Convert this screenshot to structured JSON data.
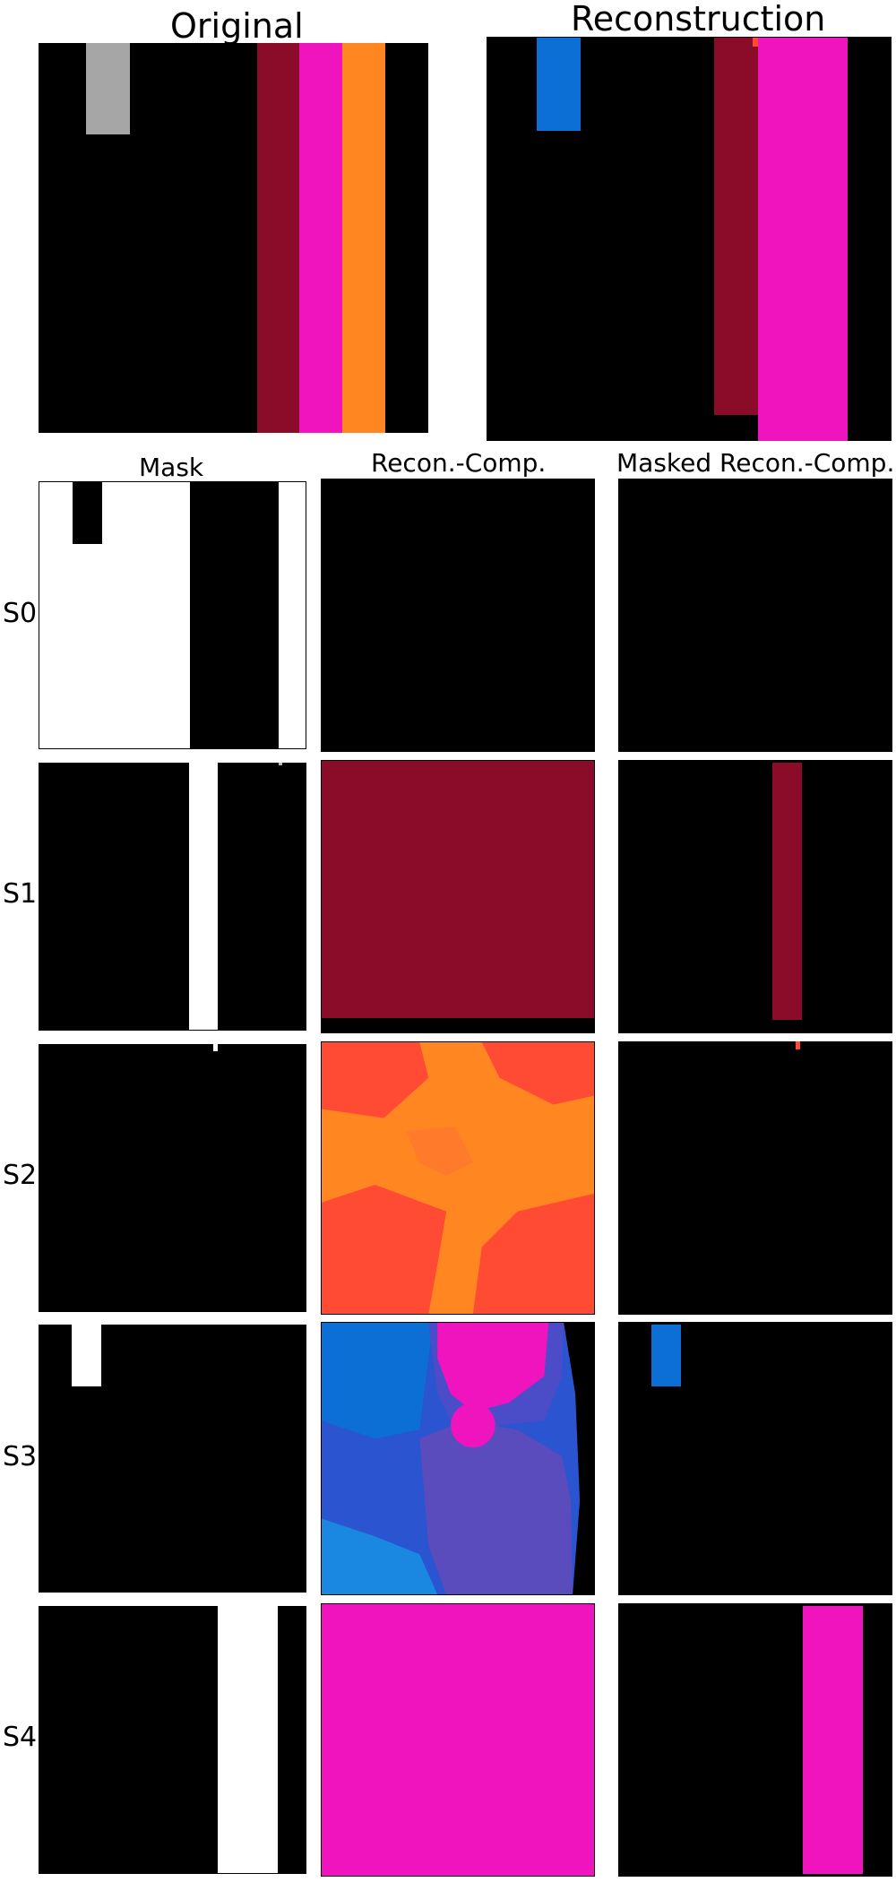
{
  "headers": {
    "original": "Original",
    "reconstruction": "Reconstruction",
    "mask": "Mask",
    "recon_comp": "Recon.-Comp.",
    "masked_recon_comp": "Masked Recon.-Comp."
  },
  "rows": [
    {
      "label": "S0"
    },
    {
      "label": "S1"
    },
    {
      "label": "S2"
    },
    {
      "label": "S3"
    },
    {
      "label": "S4"
    }
  ],
  "colors": {
    "background": "#000000",
    "gray_block": "#a6a6a6",
    "maroon": "#8a0c29",
    "magenta": "#ef14bd",
    "orange": "#ff8620",
    "blue": "#0c6fd6",
    "mask_white": "#ffffff",
    "red_orange": "#ff4a34",
    "violet_blue": "#4a4cc8",
    "royal_blue": "#2a54d0"
  }
}
